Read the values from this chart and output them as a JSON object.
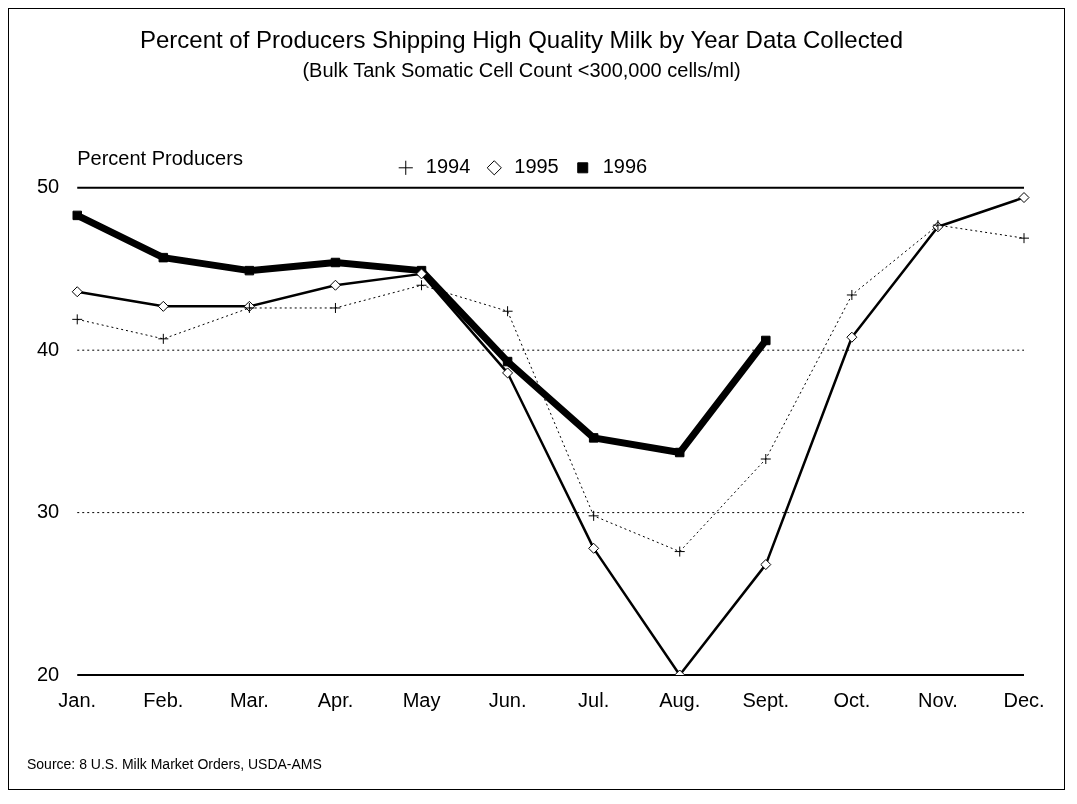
{
  "chart_data": {
    "type": "line",
    "title": "Percent of Producers Shipping High Quality Milk by Year Data Collected",
    "subtitle": "(Bulk Tank Somatic Cell Count <300,000 cells/ml)",
    "ylabel": "Percent Producers",
    "annotations": [
      "Source: 8 U.S. Milk Market Orders, USDA-AMS"
    ],
    "categories": [
      "Jan.",
      "Feb.",
      "Mar.",
      "Apr.",
      "May",
      "Jun.",
      "Jul.",
      "Aug.",
      "Sept.",
      "Oct.",
      "Nov.",
      "Dec."
    ],
    "series": [
      {
        "name": "1994",
        "color": "#000000",
        "marker": "cross",
        "line_style": "dotted",
        "values": [
          41.9,
          40.7,
          42.6,
          42.6,
          44.0,
          42.4,
          29.8,
          27.6,
          33.3,
          43.4,
          47.7,
          46.9
        ]
      },
      {
        "name": "1995",
        "color": "#000000",
        "marker": "diamond",
        "line_style": "solid",
        "values": [
          43.6,
          42.7,
          42.7,
          44.0,
          44.7,
          38.6,
          27.8,
          20.0,
          26.8,
          40.8,
          47.6,
          49.4
        ]
      },
      {
        "name": "1996",
        "color": "#000000",
        "marker": "square",
        "line_style": "solid",
        "values": [
          48.3,
          45.7,
          44.9,
          45.4,
          44.9,
          39.3,
          34.6,
          33.7,
          40.6,
          null,
          null,
          null
        ]
      }
    ],
    "ylim": [
      20,
      50
    ],
    "yticks": [
      20,
      30,
      40,
      50
    ],
    "grid": "y",
    "legend": "top"
  }
}
